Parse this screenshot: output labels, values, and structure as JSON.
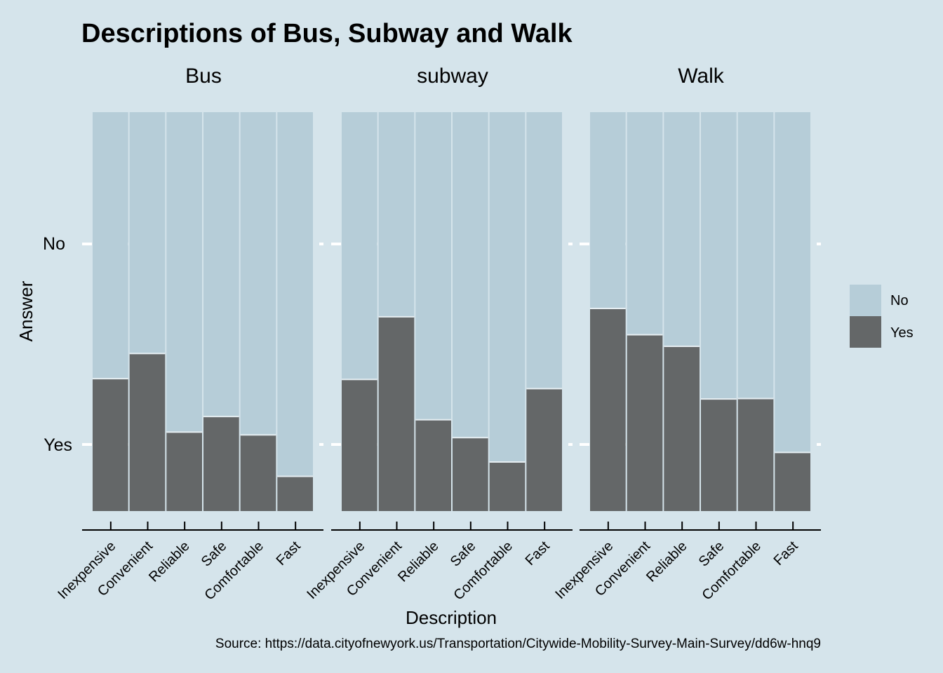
{
  "chart_data": {
    "type": "bar",
    "subtype": "stacked-proportion",
    "title": "Descriptions of Bus, Subway and Walk",
    "xlabel": "Description",
    "ylabel": "Answer",
    "caption": "Source: https://data.cityofnewyork.us/Transportation/Citywide-Mobility-Survey-Main-Survey/dd6w-hnq9",
    "ytick_labels": [
      "Yes",
      "No"
    ],
    "grid": true,
    "legend": {
      "position": "right",
      "entries": [
        {
          "label": "No",
          "color": "#b6cdd8"
        },
        {
          "label": "Yes",
          "color": "#646768"
        }
      ]
    },
    "categories": [
      "Inexpensive",
      "Convenient",
      "Reliable",
      "Safe",
      "Comfortable",
      "Fast"
    ],
    "facets": [
      {
        "label": "Bus",
        "yes_share": [
          0.332,
          0.395,
          0.198,
          0.237,
          0.191,
          0.087
        ]
      },
      {
        "label": "subway",
        "yes_share": [
          0.33,
          0.487,
          0.229,
          0.184,
          0.123,
          0.307
        ]
      },
      {
        "label": "Walk",
        "yes_share": [
          0.508,
          0.442,
          0.413,
          0.281,
          0.282,
          0.147
        ]
      }
    ],
    "colors": {
      "background": "#d5e4eb",
      "no": "#b6cdd8",
      "yes": "#646768",
      "grid": "#ffffff",
      "axis": "#000000"
    }
  }
}
